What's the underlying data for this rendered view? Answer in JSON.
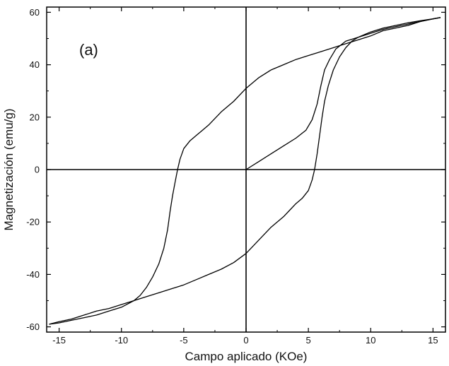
{
  "chart_data": {
    "type": "line",
    "panel_label": "(a)",
    "xlabel": "Campo aplicado (KOe)",
    "ylabel": "Magnetización (emu/g)",
    "xlim": [
      -16,
      16
    ],
    "ylim": [
      -62,
      62
    ],
    "x_ticks": [
      -15,
      -10,
      -5,
      0,
      5,
      10,
      15
    ],
    "y_ticks": [
      -60,
      -40,
      -20,
      0,
      20,
      40,
      60
    ],
    "x_tick_labels": [
      "-15",
      "-10",
      "-5",
      "0",
      "5",
      "10",
      "15"
    ],
    "y_tick_labels": [
      "-60",
      "-40",
      "-20",
      "0",
      "20",
      "40",
      "60"
    ],
    "grid": false,
    "reference_lines": {
      "x": 0,
      "y": 0
    },
    "line_color": "#000000",
    "series": [
      {
        "x": [
          0.0,
          1.0,
          2.0,
          3.0,
          4.0,
          4.8,
          5.3,
          5.7,
          6.0,
          6.3,
          6.7,
          7.2,
          8.0,
          9.0,
          10.0,
          11.0,
          12.0,
          13.0,
          14.0,
          15.0,
          15.6
        ],
        "y": [
          0.0,
          3.0,
          6.0,
          9.0,
          12.0,
          15.0,
          19.0,
          25.0,
          32.0,
          38.0,
          42.0,
          46.0,
          49.0,
          50.5,
          52.0,
          53.5,
          54.5,
          55.5,
          56.5,
          57.5,
          58.0
        ]
      },
      {
        "x": [
          15.6,
          15.0,
          14.0,
          13.0,
          12.0,
          11.0,
          10.0,
          9.0,
          8.0,
          7.0,
          6.0,
          5.0,
          4.0,
          3.0,
          2.0,
          1.0,
          0.0,
          -1.0,
          -2.0,
          -3.0,
          -3.5,
          -4.0,
          -4.5,
          -5.0,
          -5.3,
          -5.5,
          -5.7,
          -5.9,
          -6.1,
          -6.3,
          -6.6,
          -7.0,
          -7.5,
          -8.0,
          -8.5,
          -9.0,
          -10.0,
          -11.0,
          -12.0,
          -13.0,
          -14.0,
          -15.0,
          -15.8
        ],
        "y": [
          58.0,
          57.5,
          56.5,
          55.0,
          54.0,
          53.0,
          51.0,
          49.5,
          48.0,
          46.5,
          45.0,
          43.5,
          42.0,
          40.0,
          38.0,
          35.0,
          31.0,
          26.0,
          22.0,
          17.0,
          15.0,
          13.0,
          11.0,
          8.0,
          4.0,
          0.0,
          -5.0,
          -10.0,
          -16.0,
          -23.0,
          -30.0,
          -36.0,
          -41.0,
          -45.0,
          -48.0,
          -50.0,
          -52.5,
          -54.0,
          -55.5,
          -56.5,
          -57.5,
          -58.5,
          -59.0
        ]
      },
      {
        "x": [
          -15.8,
          -15.0,
          -14.0,
          -13.0,
          -12.0,
          -11.0,
          -10.0,
          -9.0,
          -8.0,
          -7.0,
          -6.0,
          -5.0,
          -4.0,
          -3.0,
          -2.0,
          -1.0,
          0.0,
          1.0,
          2.0,
          3.0,
          3.5,
          4.0,
          4.5,
          5.0,
          5.3,
          5.5,
          5.7,
          5.9,
          6.1,
          6.3,
          6.6,
          7.0,
          7.5,
          8.0,
          8.5,
          9.0,
          10.0,
          11.0,
          12.0,
          13.0,
          14.0,
          15.0,
          15.6
        ],
        "y": [
          -59.0,
          -58.0,
          -57.0,
          -55.5,
          -54.0,
          -53.0,
          -51.5,
          -50.0,
          -48.5,
          -47.0,
          -45.5,
          -44.0,
          -42.0,
          -40.0,
          -38.0,
          -35.5,
          -32.0,
          -27.0,
          -22.0,
          -18.0,
          -15.5,
          -13.0,
          -11.0,
          -8.0,
          -4.0,
          0.0,
          6.0,
          13.0,
          20.0,
          26.0,
          32.0,
          38.0,
          43.0,
          46.5,
          49.0,
          50.5,
          52.5,
          54.0,
          55.0,
          56.0,
          56.8,
          57.5,
          58.0
        ]
      }
    ]
  }
}
